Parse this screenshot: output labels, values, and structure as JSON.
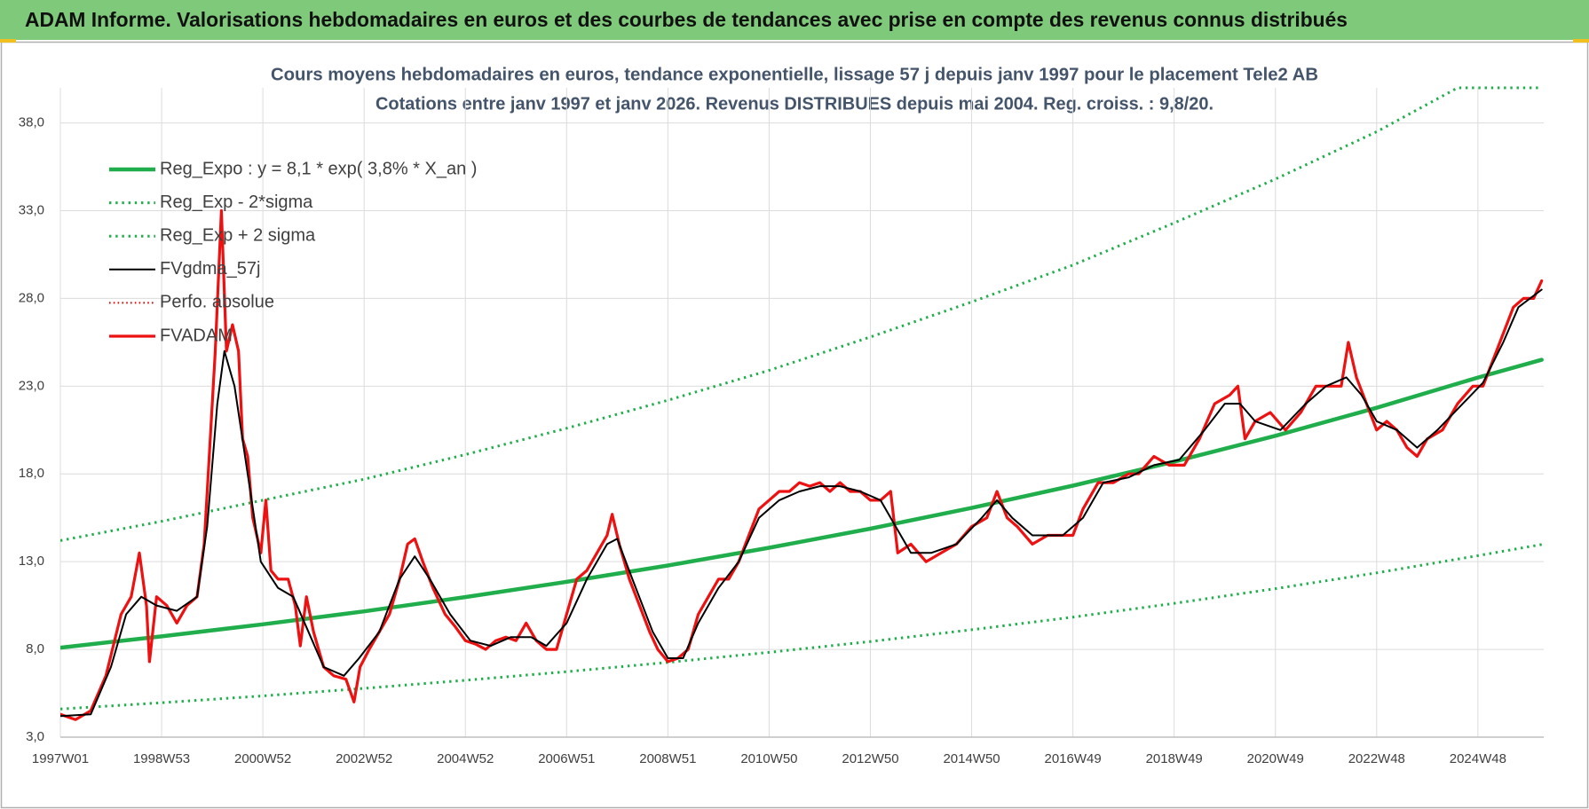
{
  "header": {
    "title": "ADAM Informe. Valorisations hebdomadaires en euros et des courbes de tendances avec prise en compte des revenus connus distribués"
  },
  "chart_data": {
    "type": "line",
    "title": "Cours moyens hebdomadaires en euros, tendance exponentielle, lissage 57 j depuis janv 1997 pour le placement Tele2 AB",
    "subtitle": "Cotations entre janv 1997 et janv 2026. Revenus DISTRIBUES depuis mai 2004. Reg. croiss. : 9,8/20.",
    "xlim": [
      1997,
      2026.3
    ],
    "xticks": [
      {
        "value": 1997,
        "label": "1997W01"
      },
      {
        "value": 1999,
        "label": "1998W53"
      },
      {
        "value": 2001,
        "label": "2000W52"
      },
      {
        "value": 2003,
        "label": "2002W52"
      },
      {
        "value": 2005,
        "label": "2004W52"
      },
      {
        "value": 2007,
        "label": "2006W51"
      },
      {
        "value": 2009,
        "label": "2008W51"
      },
      {
        "value": 2011,
        "label": "2010W50"
      },
      {
        "value": 2013,
        "label": "2012W50"
      },
      {
        "value": 2015,
        "label": "2014W50"
      },
      {
        "value": 2017,
        "label": "2016W49"
      },
      {
        "value": 2019,
        "label": "2018W49"
      },
      {
        "value": 2021,
        "label": "2020W49"
      },
      {
        "value": 2023,
        "label": "2022W48"
      },
      {
        "value": 2025,
        "label": "2024W48"
      }
    ],
    "ylim": [
      3,
      40
    ],
    "yticks": [
      {
        "value": 3,
        "label": "3,0"
      },
      {
        "value": 8,
        "label": "8,0"
      },
      {
        "value": 13,
        "label": "13,0"
      },
      {
        "value": 18,
        "label": "18,0"
      },
      {
        "value": 23,
        "label": "23,0"
      },
      {
        "value": 28,
        "label": "28,0"
      },
      {
        "value": 33,
        "label": "33,0"
      },
      {
        "value": 38,
        "label": "38,0"
      }
    ],
    "grid": true,
    "legend": "top-left",
    "series": [
      {
        "name": "Reg_Expo : y = 8,1 * exp( 3,8% *  X_an )",
        "color": "#1fae4b",
        "line_style": "solid",
        "line_width": 4.5,
        "x": [
          1997,
          1999,
          2001,
          2003,
          2005,
          2007,
          2009,
          2011,
          2013,
          2015,
          2017,
          2019,
          2021,
          2023,
          2025,
          2026.26
        ],
        "values": [
          8.1,
          8.74,
          9.43,
          10.17,
          10.98,
          11.85,
          12.78,
          13.79,
          14.88,
          16.06,
          17.33,
          18.7,
          20.17,
          21.77,
          23.49,
          24.5
        ]
      },
      {
        "name": "Reg_Exp - 2*sigma",
        "color": "#1fae4b",
        "line_style": "dotted",
        "line_width": 3,
        "x": [
          1997,
          1999,
          2001,
          2003,
          2005,
          2007,
          2009,
          2011,
          2013,
          2015,
          2017,
          2019,
          2021,
          2023,
          2025,
          2026.26
        ],
        "values": [
          4.6,
          4.96,
          5.35,
          5.78,
          6.24,
          6.73,
          7.26,
          7.83,
          8.45,
          9.12,
          9.84,
          10.62,
          11.46,
          12.36,
          13.34,
          13.98
        ]
      },
      {
        "name": "Reg_Exp + 2 sigma",
        "color": "#1fae4b",
        "line_style": "dotted",
        "line_width": 3,
        "x": [
          1997,
          1999,
          2001,
          2003,
          2005,
          2007,
          2009,
          2011,
          2013,
          2015,
          2017,
          2019,
          2021,
          2023,
          2024.6,
          2026.26
        ],
        "values": [
          14.2,
          15.3,
          16.5,
          17.7,
          19.1,
          20.6,
          22.2,
          23.9,
          25.8,
          27.8,
          29.9,
          32.3,
          34.8,
          37.5,
          40,
          40
        ]
      },
      {
        "name": "FVgdma_57j",
        "color": "#000000",
        "line_style": "solid",
        "line_width": 2,
        "x": [
          1997.0,
          1997.6,
          1998.0,
          1998.3,
          1998.6,
          1998.9,
          1999.3,
          1999.7,
          1999.9,
          2000.1,
          2000.24,
          2000.44,
          2000.7,
          2000.96,
          2001.3,
          2001.6,
          2001.9,
          2002.2,
          2002.6,
          2002.9,
          2003.3,
          2003.7,
          2004.0,
          2004.3,
          2004.7,
          2005.1,
          2005.5,
          2005.9,
          2006.3,
          2006.6,
          2007.0,
          2007.4,
          2007.8,
          2008.0,
          2008.3,
          2008.7,
          2009.0,
          2009.3,
          2009.6,
          2010.0,
          2010.4,
          2010.8,
          2011.2,
          2011.6,
          2012.0,
          2012.4,
          2012.8,
          2013.2,
          2013.5,
          2013.8,
          2014.2,
          2014.7,
          2015.2,
          2015.5,
          2015.8,
          2016.2,
          2016.8,
          2017.2,
          2017.6,
          2018.1,
          2018.6,
          2019.1,
          2019.6,
          2020.0,
          2020.3,
          2020.6,
          2021.1,
          2021.6,
          2022.0,
          2022.4,
          2022.7,
          2023.0,
          2023.4,
          2023.8,
          2024.2,
          2024.7,
          2025.1,
          2025.5,
          2025.8,
          2026.26
        ],
        "values": [
          4.2,
          4.3,
          7,
          10,
          11,
          10.5,
          10.2,
          11,
          15,
          22,
          25,
          23,
          18,
          13,
          11.5,
          11,
          9,
          7,
          6.5,
          7.5,
          9,
          12,
          13.3,
          12,
          10,
          8.5,
          8.2,
          8.7,
          8.7,
          8.2,
          9.5,
          12,
          14,
          14.3,
          12,
          9,
          7.5,
          7.5,
          9.5,
          11.5,
          13,
          15.5,
          16.5,
          17,
          17.3,
          17.3,
          17,
          16.5,
          15,
          13.5,
          13.5,
          14,
          15.5,
          16.5,
          15.5,
          14.5,
          14.5,
          15.5,
          17.5,
          17.8,
          18.5,
          18.8,
          20.5,
          22,
          22,
          21,
          20.5,
          22,
          23,
          23.5,
          22.5,
          21,
          20.5,
          19.5,
          20.5,
          22,
          23.2,
          25.5,
          27.5,
          28.5
        ]
      },
      {
        "name": "Perfo. absolue",
        "color": "#e00000",
        "line_style": "dotted",
        "line_width": 2,
        "x": [
          1997.0,
          1997.3,
          1997.6,
          1997.9,
          1998.2,
          1998.4,
          1998.56,
          1998.7,
          1998.76,
          1998.9,
          1999.1,
          1999.3,
          1999.5,
          1999.7,
          1999.84,
          1999.94,
          2000.06,
          2000.18,
          2000.28,
          2000.4,
          2000.52,
          2000.6,
          2000.7,
          2000.8,
          2000.96,
          2001.06,
          2001.16,
          2001.3,
          2001.5,
          2001.64,
          2001.74,
          2001.86,
          2002.0,
          2002.2,
          2002.4,
          2002.64,
          2002.8
        ],
        "values": [
          4.3,
          4.0,
          4.5,
          6.5,
          10,
          11,
          13.5,
          10.5,
          7.3,
          11,
          10.5,
          9.5,
          10.5,
          11,
          14,
          19,
          25,
          33,
          25,
          26.5,
          25,
          20,
          19,
          15.5,
          13.5,
          16.5,
          12.5,
          12,
          12,
          10.5,
          8.2,
          11,
          9,
          7,
          6.5,
          6.3,
          5
        ]
      },
      {
        "name": "FVADAM",
        "color": "#ee1111",
        "line_style": "solid",
        "line_width": 3.2,
        "x": [
          1997.0,
          1997.3,
          1997.6,
          1997.9,
          1998.2,
          1998.4,
          1998.56,
          1998.7,
          1998.76,
          1998.9,
          1999.1,
          1999.3,
          1999.5,
          1999.7,
          1999.84,
          1999.94,
          2000.06,
          2000.18,
          2000.28,
          2000.4,
          2000.52,
          2000.6,
          2000.7,
          2000.8,
          2000.96,
          2001.06,
          2001.16,
          2001.3,
          2001.5,
          2001.64,
          2001.74,
          2001.86,
          2002.0,
          2002.2,
          2002.4,
          2002.64,
          2002.8,
          2002.92,
          2003.1,
          2003.3,
          2003.5,
          2003.7,
          2003.86,
          2004.0,
          2004.16,
          2004.36,
          2004.6,
          2004.8,
          2005.0,
          2005.2,
          2005.4,
          2005.6,
          2005.8,
          2006.0,
          2006.2,
          2006.4,
          2006.6,
          2006.8,
          2007.0,
          2007.2,
          2007.4,
          2007.6,
          2007.8,
          2007.9,
          2008.04,
          2008.24,
          2008.44,
          2008.64,
          2008.8,
          2009.0,
          2009.2,
          2009.4,
          2009.6,
          2009.8,
          2010.0,
          2010.2,
          2010.4,
          2010.6,
          2010.8,
          2011.0,
          2011.2,
          2011.4,
          2011.6,
          2011.8,
          2012.0,
          2012.2,
          2012.4,
          2012.6,
          2012.8,
          2013.0,
          2013.2,
          2013.4,
          2013.54,
          2013.8,
          2014.1,
          2014.4,
          2014.7,
          2015.0,
          2015.3,
          2015.5,
          2015.7,
          2015.9,
          2016.2,
          2016.5,
          2016.8,
          2017.0,
          2017.2,
          2017.5,
          2017.8,
          2018.1,
          2018.3,
          2018.6,
          2018.9,
          2019.2,
          2019.5,
          2019.8,
          2020.1,
          2020.26,
          2020.4,
          2020.6,
          2020.9,
          2021.2,
          2021.5,
          2021.8,
          2022.1,
          2022.3,
          2022.44,
          2022.6,
          2022.8,
          2023.0,
          2023.2,
          2023.4,
          2023.6,
          2023.8,
          2024.0,
          2024.3,
          2024.6,
          2024.9,
          2025.1,
          2025.3,
          2025.5,
          2025.7,
          2025.9,
          2026.1,
          2026.26
        ],
        "values": [
          4.3,
          4.0,
          4.5,
          6.5,
          10,
          11,
          13.5,
          10.5,
          7.3,
          11,
          10.5,
          9.5,
          10.5,
          11,
          14,
          19,
          25,
          33,
          25,
          26.5,
          25,
          20,
          19,
          15.5,
          13.5,
          16.5,
          12.5,
          12,
          12,
          10.5,
          8.2,
          11,
          9,
          7,
          6.5,
          6.3,
          5,
          7,
          8,
          9,
          10,
          12,
          14,
          14.3,
          13,
          11.5,
          10,
          9.3,
          8.5,
          8.3,
          8,
          8.5,
          8.7,
          8.5,
          9.5,
          8.5,
          8,
          8,
          10,
          12,
          12.5,
          13.5,
          14.5,
          15.7,
          14,
          12,
          10.5,
          9,
          8,
          7.3,
          7.5,
          8,
          10,
          11,
          12,
          12,
          13,
          14.5,
          16,
          16.5,
          17,
          17,
          17.5,
          17.3,
          17.5,
          17,
          17.5,
          17,
          17,
          16.5,
          16.5,
          17,
          13.5,
          14,
          13,
          13.5,
          14,
          15,
          15.5,
          17,
          15.5,
          15,
          14,
          14.5,
          14.5,
          14.5,
          16,
          17.5,
          17.5,
          18,
          18,
          19,
          18.5,
          18.5,
          20,
          22,
          22.5,
          23,
          20,
          21,
          21.5,
          20.5,
          21.5,
          23,
          23,
          23,
          25.5,
          23.5,
          22,
          20.5,
          21,
          20.5,
          19.5,
          19,
          20,
          20.5,
          22,
          23,
          23,
          24.5,
          26,
          27.5,
          28,
          28,
          29
        ]
      }
    ]
  }
}
